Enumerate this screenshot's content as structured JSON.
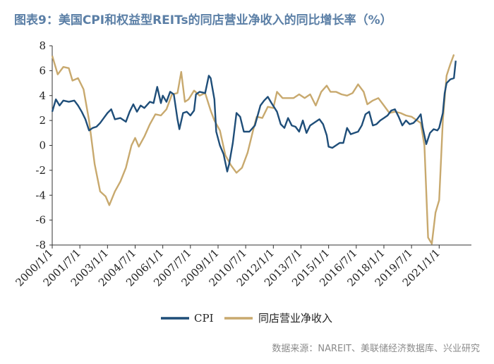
{
  "title": "图表9：美国CPI和权益型REITs的同店营业净收入的同比增长率（%）",
  "source": "数据来源：NAREIT、美联储经济数据库、兴业研究",
  "colors": {
    "cpi": "#1f4e79",
    "noi": "#c8a96e",
    "title": "#5b7fa6"
  },
  "chart_data": {
    "type": "line",
    "title": "美国CPI和权益型REITs的同店营业净收入的同比增长率（%）",
    "xlabel": "",
    "ylabel": "",
    "ylim": [
      -8,
      8
    ],
    "y_ticks": [
      "8",
      "6",
      "4",
      "2",
      "0",
      "-2",
      "-4",
      "-6",
      "-8"
    ],
    "x_range": [
      2000.0,
      2022.75
    ],
    "x_ticks": [
      {
        "label": "2000/1/1",
        "x": 2000.0
      },
      {
        "label": "2001/7/1",
        "x": 2001.5
      },
      {
        "label": "2003/1/1",
        "x": 2003.0
      },
      {
        "label": "2004/7/1",
        "x": 2004.5
      },
      {
        "label": "2006/1/1",
        "x": 2006.0
      },
      {
        "label": "2007/7/1",
        "x": 2007.5
      },
      {
        "label": "2009/1/1",
        "x": 2009.0
      },
      {
        "label": "2010/7/1",
        "x": 2010.5
      },
      {
        "label": "2012/1/1",
        "x": 2012.0
      },
      {
        "label": "2013/7/1",
        "x": 2013.5
      },
      {
        "label": "2015/1/1",
        "x": 2015.0
      },
      {
        "label": "2016/7/1",
        "x": 2016.5
      },
      {
        "label": "2018/1/1",
        "x": 2018.0
      },
      {
        "label": "2019/7/1",
        "x": 2019.5
      },
      {
        "label": "2021/1/1",
        "x": 2021.0
      }
    ],
    "legend": [
      "CPI",
      "同店营业净收入"
    ],
    "series": [
      {
        "name": "CPI",
        "points": [
          [
            2000.0,
            2.7
          ],
          [
            2000.2,
            3.7
          ],
          [
            2000.4,
            3.2
          ],
          [
            2000.6,
            3.6
          ],
          [
            2000.9,
            3.5
          ],
          [
            2001.2,
            3.6
          ],
          [
            2001.4,
            3.2
          ],
          [
            2001.6,
            2.7
          ],
          [
            2001.8,
            2.1
          ],
          [
            2002.0,
            1.2
          ],
          [
            2002.2,
            1.4
          ],
          [
            2002.4,
            1.5
          ],
          [
            2002.6,
            1.8
          ],
          [
            2002.8,
            2.2
          ],
          [
            2003.0,
            2.6
          ],
          [
            2003.2,
            2.9
          ],
          [
            2003.4,
            2.1
          ],
          [
            2003.7,
            2.2
          ],
          [
            2004.0,
            1.9
          ],
          [
            2004.2,
            2.7
          ],
          [
            2004.4,
            3.3
          ],
          [
            2004.6,
            2.7
          ],
          [
            2004.8,
            3.2
          ],
          [
            2005.0,
            3.0
          ],
          [
            2005.3,
            3.5
          ],
          [
            2005.5,
            3.4
          ],
          [
            2005.7,
            4.7
          ],
          [
            2005.9,
            3.4
          ],
          [
            2006.0,
            4.0
          ],
          [
            2006.2,
            3.5
          ],
          [
            2006.4,
            4.3
          ],
          [
            2006.6,
            4.1
          ],
          [
            2006.8,
            2.1
          ],
          [
            2006.9,
            1.3
          ],
          [
            2007.1,
            2.6
          ],
          [
            2007.3,
            2.7
          ],
          [
            2007.5,
            2.4
          ],
          [
            2007.7,
            2.8
          ],
          [
            2007.8,
            4.1
          ],
          [
            2008.0,
            4.3
          ],
          [
            2008.3,
            4.2
          ],
          [
            2008.5,
            5.6
          ],
          [
            2008.6,
            5.4
          ],
          [
            2008.8,
            3.7
          ],
          [
            2008.9,
            1.1
          ],
          [
            2009.1,
            0.0
          ],
          [
            2009.3,
            -0.7
          ],
          [
            2009.5,
            -2.1
          ],
          [
            2009.6,
            -1.5
          ],
          [
            2009.8,
            0.2
          ],
          [
            2010.0,
            2.6
          ],
          [
            2010.2,
            2.3
          ],
          [
            2010.4,
            1.1
          ],
          [
            2010.7,
            1.1
          ],
          [
            2011.0,
            1.6
          ],
          [
            2011.3,
            3.2
          ],
          [
            2011.5,
            3.6
          ],
          [
            2011.7,
            3.9
          ],
          [
            2011.9,
            3.4
          ],
          [
            2012.2,
            2.7
          ],
          [
            2012.4,
            1.7
          ],
          [
            2012.6,
            1.4
          ],
          [
            2012.8,
            2.2
          ],
          [
            2013.0,
            1.6
          ],
          [
            2013.2,
            1.5
          ],
          [
            2013.4,
            1.1
          ],
          [
            2013.6,
            2.0
          ],
          [
            2013.8,
            1.0
          ],
          [
            2014.0,
            1.6
          ],
          [
            2014.3,
            1.9
          ],
          [
            2014.5,
            2.1
          ],
          [
            2014.7,
            1.7
          ],
          [
            2014.9,
            0.8
          ],
          [
            2015.0,
            -0.1
          ],
          [
            2015.2,
            -0.2
          ],
          [
            2015.4,
            0.0
          ],
          [
            2015.6,
            0.2
          ],
          [
            2015.8,
            0.2
          ],
          [
            2016.0,
            1.4
          ],
          [
            2016.2,
            0.9
          ],
          [
            2016.4,
            1.0
          ],
          [
            2016.6,
            1.1
          ],
          [
            2016.8,
            1.6
          ],
          [
            2017.0,
            2.5
          ],
          [
            2017.2,
            2.7
          ],
          [
            2017.4,
            1.6
          ],
          [
            2017.6,
            1.7
          ],
          [
            2017.8,
            2.0
          ],
          [
            2018.0,
            2.2
          ],
          [
            2018.2,
            2.4
          ],
          [
            2018.4,
            2.8
          ],
          [
            2018.6,
            2.9
          ],
          [
            2018.8,
            2.3
          ],
          [
            2019.0,
            1.6
          ],
          [
            2019.2,
            2.0
          ],
          [
            2019.4,
            1.7
          ],
          [
            2019.6,
            1.8
          ],
          [
            2019.8,
            2.1
          ],
          [
            2020.0,
            2.5
          ],
          [
            2020.1,
            1.5
          ],
          [
            2020.3,
            0.1
          ],
          [
            2020.5,
            1.0
          ],
          [
            2020.7,
            1.3
          ],
          [
            2020.9,
            1.2
          ],
          [
            2021.0,
            1.4
          ],
          [
            2021.2,
            2.6
          ],
          [
            2021.3,
            4.2
          ],
          [
            2021.4,
            5.0
          ],
          [
            2021.6,
            5.3
          ],
          [
            2021.8,
            5.4
          ],
          [
            2021.9,
            6.8
          ]
        ]
      },
      {
        "name": "同店营业净收入",
        "points": [
          [
            2000.0,
            7.2
          ],
          [
            2000.3,
            5.7
          ],
          [
            2000.6,
            6.3
          ],
          [
            2000.9,
            6.2
          ],
          [
            2001.1,
            5.2
          ],
          [
            2001.4,
            5.4
          ],
          [
            2001.7,
            4.5
          ],
          [
            2002.0,
            2.0
          ],
          [
            2002.3,
            -1.5
          ],
          [
            2002.6,
            -3.7
          ],
          [
            2002.9,
            -4.1
          ],
          [
            2003.1,
            -4.8
          ],
          [
            2003.4,
            -3.7
          ],
          [
            2003.7,
            -2.9
          ],
          [
            2004.0,
            -1.8
          ],
          [
            2004.3,
            0.0
          ],
          [
            2004.5,
            0.6
          ],
          [
            2004.7,
            -0.1
          ],
          [
            2005.0,
            0.7
          ],
          [
            2005.3,
            1.7
          ],
          [
            2005.6,
            2.5
          ],
          [
            2005.9,
            2.4
          ],
          [
            2006.2,
            2.9
          ],
          [
            2006.5,
            4.1
          ],
          [
            2006.8,
            4.2
          ],
          [
            2007.0,
            5.9
          ],
          [
            2007.2,
            3.5
          ],
          [
            2007.4,
            3.7
          ],
          [
            2007.7,
            4.4
          ],
          [
            2008.0,
            4.0
          ],
          [
            2008.3,
            4.2
          ],
          [
            2008.6,
            2.8
          ],
          [
            2008.8,
            2.0
          ],
          [
            2009.1,
            1.2
          ],
          [
            2009.4,
            -0.8
          ],
          [
            2009.7,
            -1.6
          ],
          [
            2010.0,
            -2.2
          ],
          [
            2010.3,
            -1.8
          ],
          [
            2010.6,
            -0.6
          ],
          [
            2010.9,
            1.2
          ],
          [
            2011.1,
            2.3
          ],
          [
            2011.4,
            2.2
          ],
          [
            2011.7,
            3.1
          ],
          [
            2012.0,
            3.0
          ],
          [
            2012.2,
            4.3
          ],
          [
            2012.5,
            3.8
          ],
          [
            2012.8,
            3.8
          ],
          [
            2013.1,
            3.8
          ],
          [
            2013.4,
            4.1
          ],
          [
            2013.7,
            3.8
          ],
          [
            2014.0,
            4.1
          ],
          [
            2014.3,
            3.2
          ],
          [
            2014.6,
            4.3
          ],
          [
            2014.9,
            4.8
          ],
          [
            2015.1,
            4.3
          ],
          [
            2015.4,
            4.3
          ],
          [
            2015.7,
            4.1
          ],
          [
            2016.0,
            4.0
          ],
          [
            2016.3,
            4.2
          ],
          [
            2016.6,
            4.9
          ],
          [
            2016.9,
            4.3
          ],
          [
            2017.1,
            3.3
          ],
          [
            2017.4,
            3.6
          ],
          [
            2017.7,
            3.8
          ],
          [
            2018.0,
            3.2
          ],
          [
            2018.3,
            2.6
          ],
          [
            2018.6,
            2.7
          ],
          [
            2018.9,
            2.6
          ],
          [
            2019.2,
            2.4
          ],
          [
            2019.5,
            2.3
          ],
          [
            2019.8,
            2.0
          ],
          [
            2020.0,
            1.8
          ],
          [
            2020.2,
            0.0
          ],
          [
            2020.4,
            -7.4
          ],
          [
            2020.6,
            -7.9
          ],
          [
            2020.8,
            -5.4
          ],
          [
            2021.0,
            -4.4
          ],
          [
            2021.2,
            2.0
          ],
          [
            2021.4,
            5.6
          ],
          [
            2021.6,
            6.5
          ],
          [
            2021.8,
            7.3
          ]
        ]
      }
    ]
  }
}
